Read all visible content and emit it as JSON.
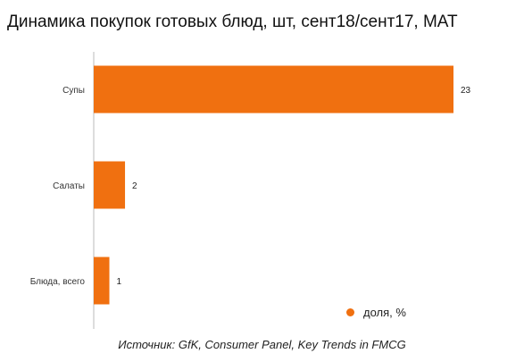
{
  "chart_data": {
    "type": "bar",
    "orientation": "horizontal",
    "title": "Динамика покупок готовых блюд, шт, сент18/сент17, МАТ",
    "categories": [
      "Супы",
      "Салаты",
      "Блюда, всего"
    ],
    "series": [
      {
        "name": "доля, %",
        "values": [
          23,
          2,
          1
        ],
        "color": "#f07010"
      }
    ],
    "xlim": [
      0,
      23
    ],
    "grid": false,
    "legend_position": "bottom-right",
    "source": "Источник: GfK, Consumer Panel, Key Trends in FMCG"
  }
}
